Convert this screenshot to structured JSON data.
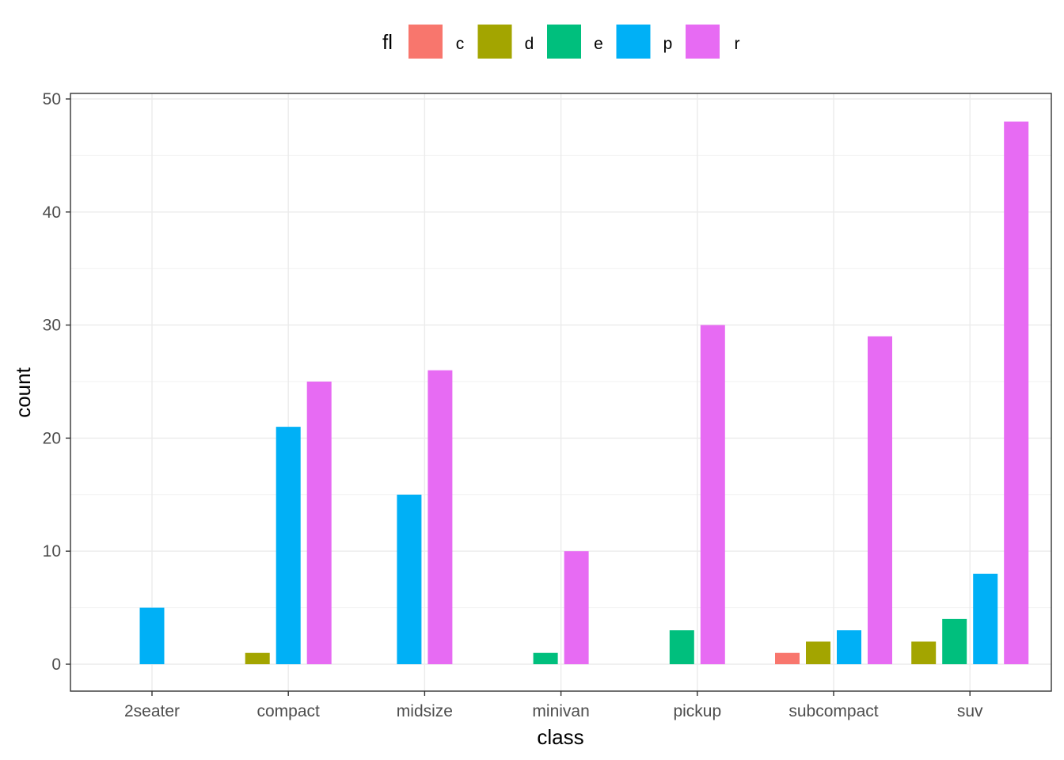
{
  "chart_data": {
    "type": "bar",
    "xlabel": "class",
    "ylabel": "count",
    "ylim": [
      0,
      50
    ],
    "y_ticks": [
      0,
      10,
      20,
      30,
      40,
      50
    ],
    "grid": true,
    "legend": {
      "title": "fl",
      "placement": "top"
    },
    "categories": [
      "2seater",
      "compact",
      "midsize",
      "minivan",
      "pickup",
      "subcompact",
      "suv"
    ],
    "series": [
      {
        "name": "c",
        "color": "#F8766D",
        "values": [
          null,
          null,
          null,
          null,
          null,
          1,
          null
        ]
      },
      {
        "name": "d",
        "color": "#A3A500",
        "values": [
          null,
          1,
          null,
          null,
          null,
          2,
          2
        ]
      },
      {
        "name": "e",
        "color": "#00BF7D",
        "values": [
          null,
          null,
          null,
          1,
          3,
          null,
          4
        ]
      },
      {
        "name": "p",
        "color": "#00B0F6",
        "values": [
          5,
          21,
          15,
          null,
          null,
          3,
          8
        ]
      },
      {
        "name": "r",
        "color": "#E76BF3",
        "values": [
          null,
          25,
          26,
          10,
          30,
          29,
          48
        ]
      }
    ]
  }
}
